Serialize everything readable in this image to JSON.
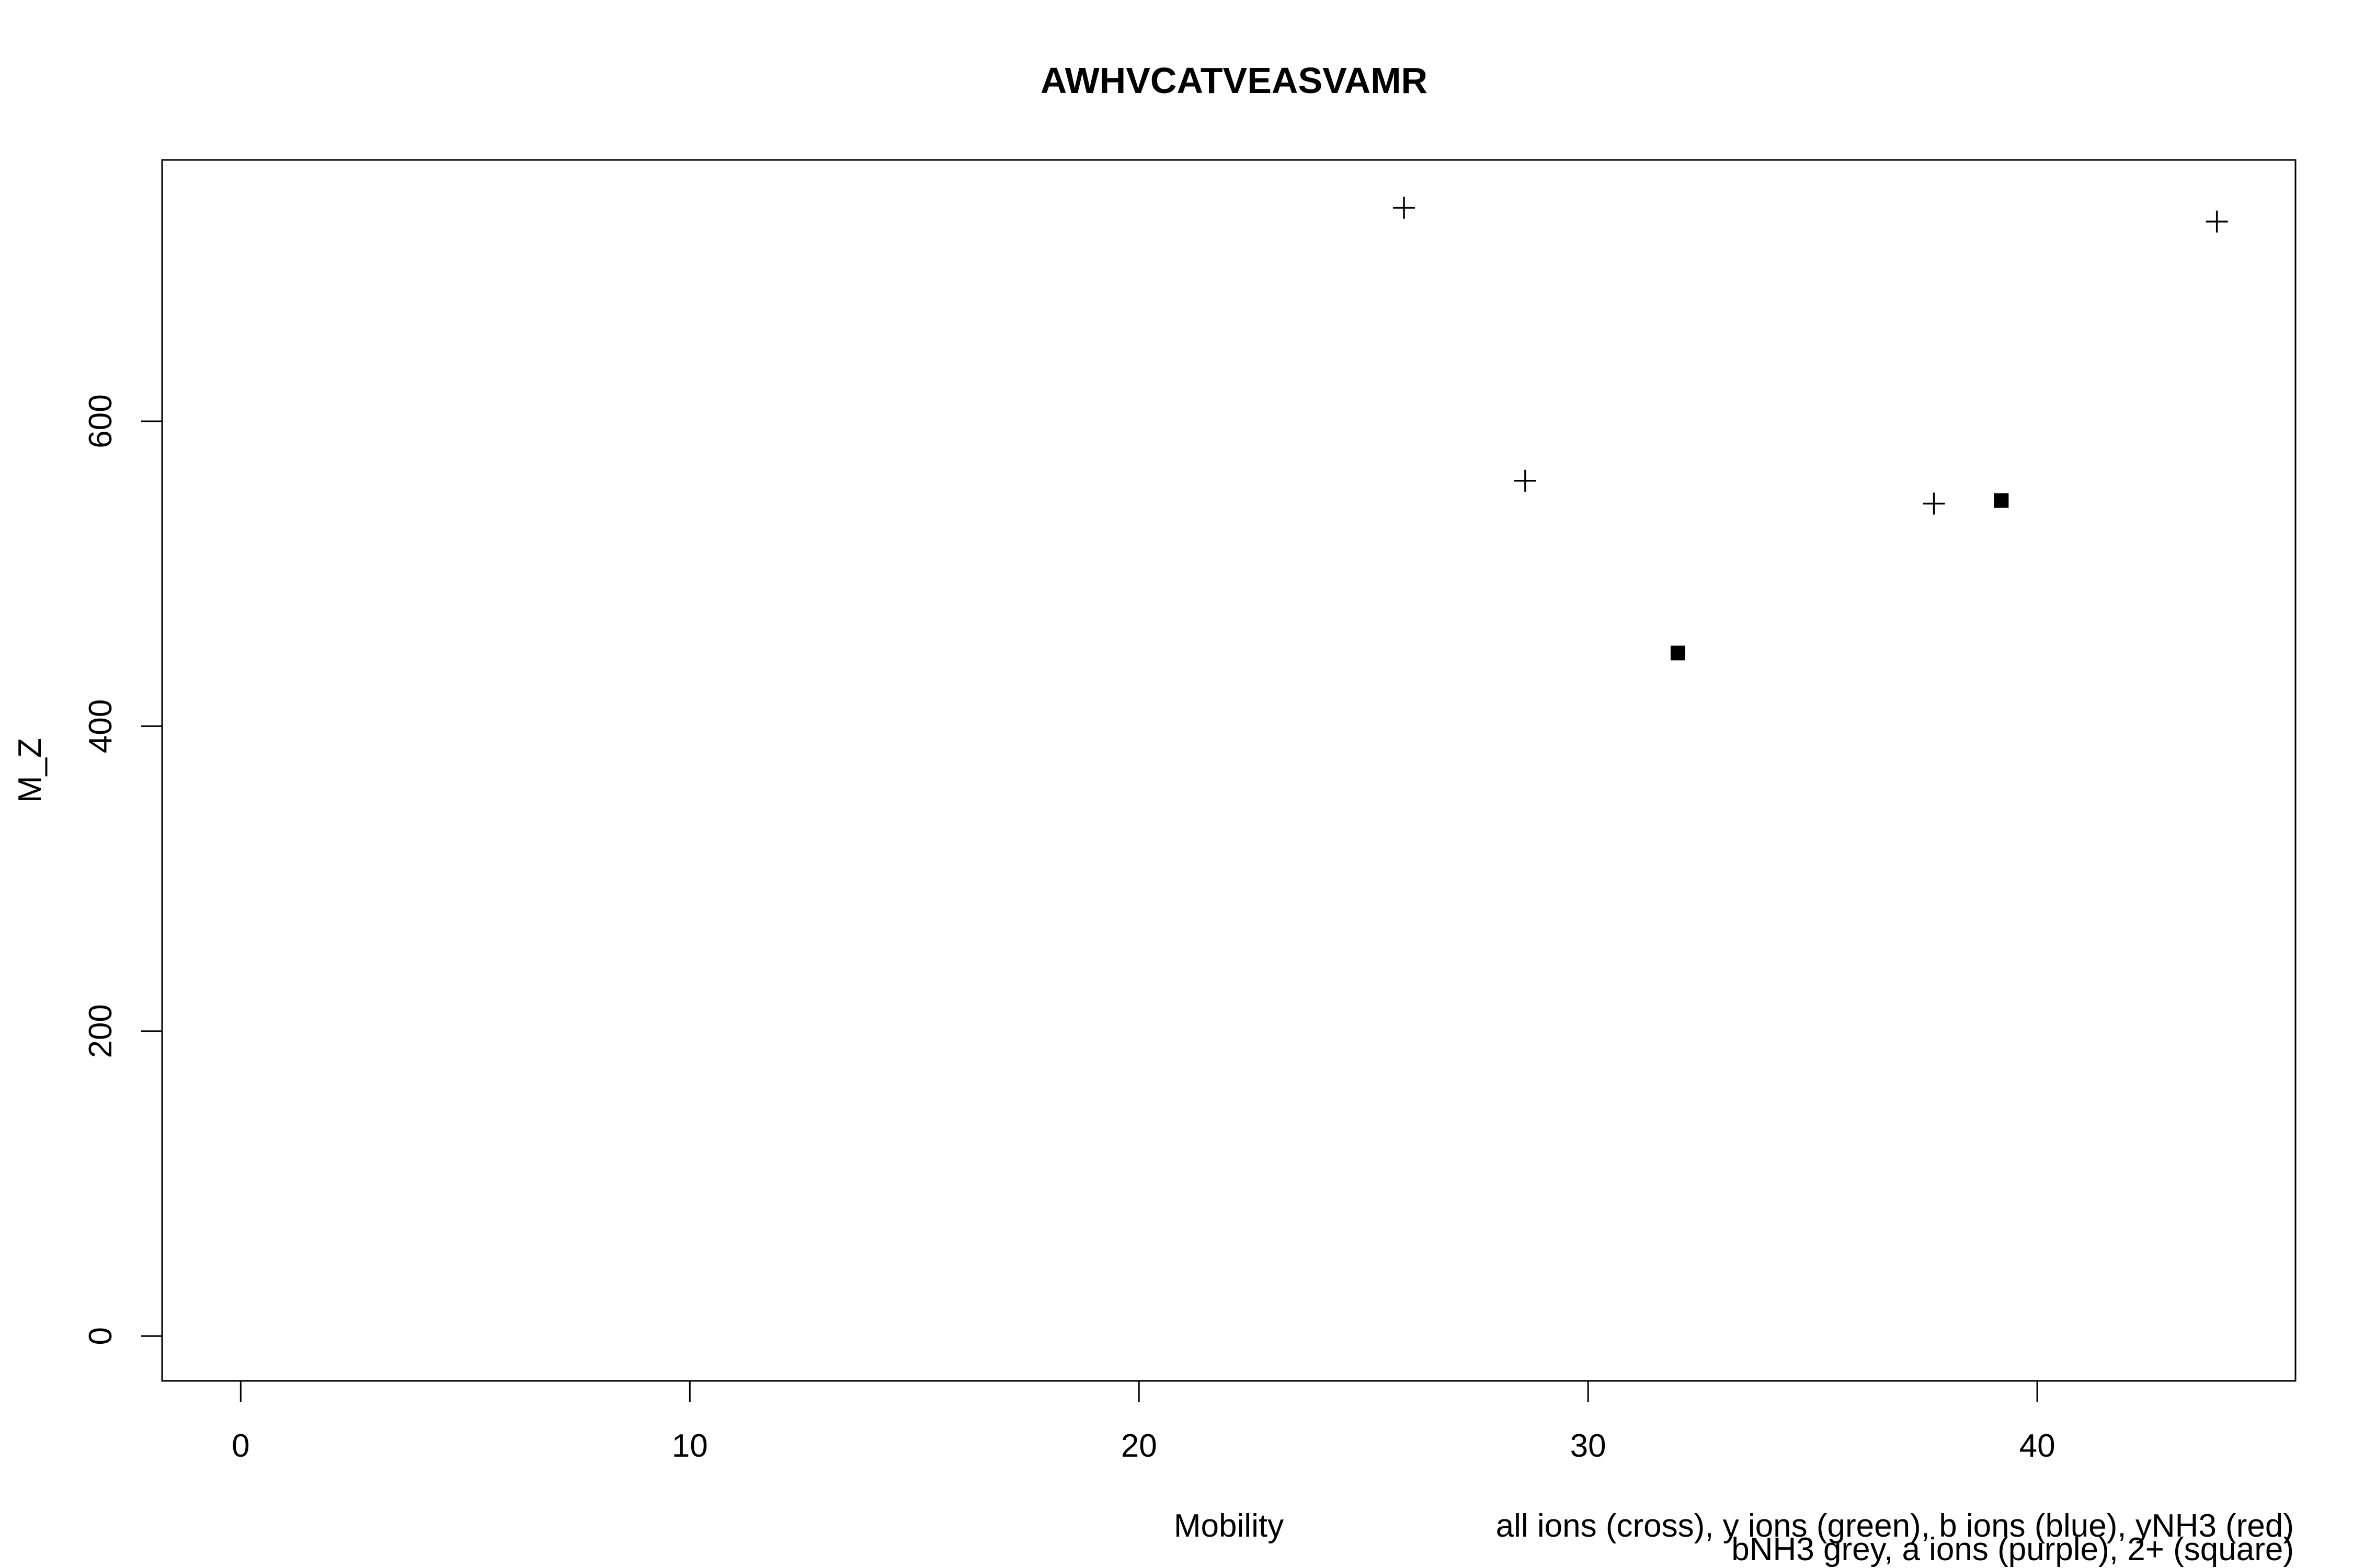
{
  "chart_data": {
    "type": "scatter",
    "title": "AWHVCATVEASVAMR",
    "xlabel": "Mobility",
    "ylabel": "M_Z",
    "xlim": [
      -1.75,
      45.75
    ],
    "ylim": [
      -29.4,
      771.4
    ],
    "x_ticks": [
      0,
      10,
      20,
      30,
      40
    ],
    "y_ticks": [
      0,
      200,
      400,
      600
    ],
    "grid": false,
    "series": [
      {
        "marker": "cross",
        "color": "#000000",
        "points": [
          {
            "x": 25.9,
            "y": 740
          },
          {
            "x": 28.6,
            "y": 561
          },
          {
            "x": 37.7,
            "y": 546
          },
          {
            "x": 44.0,
            "y": 731
          }
        ]
      },
      {
        "marker": "square",
        "color": "#000000",
        "points": [
          {
            "x": 32.0,
            "y": 448
          },
          {
            "x": 39.2,
            "y": 548
          }
        ]
      }
    ],
    "legend_note": [
      "all ions (cross), y ions (green), b ions (blue), yNH3 (red)",
      "bNH3 grey, a ions (purple), 2+ (square)"
    ]
  }
}
